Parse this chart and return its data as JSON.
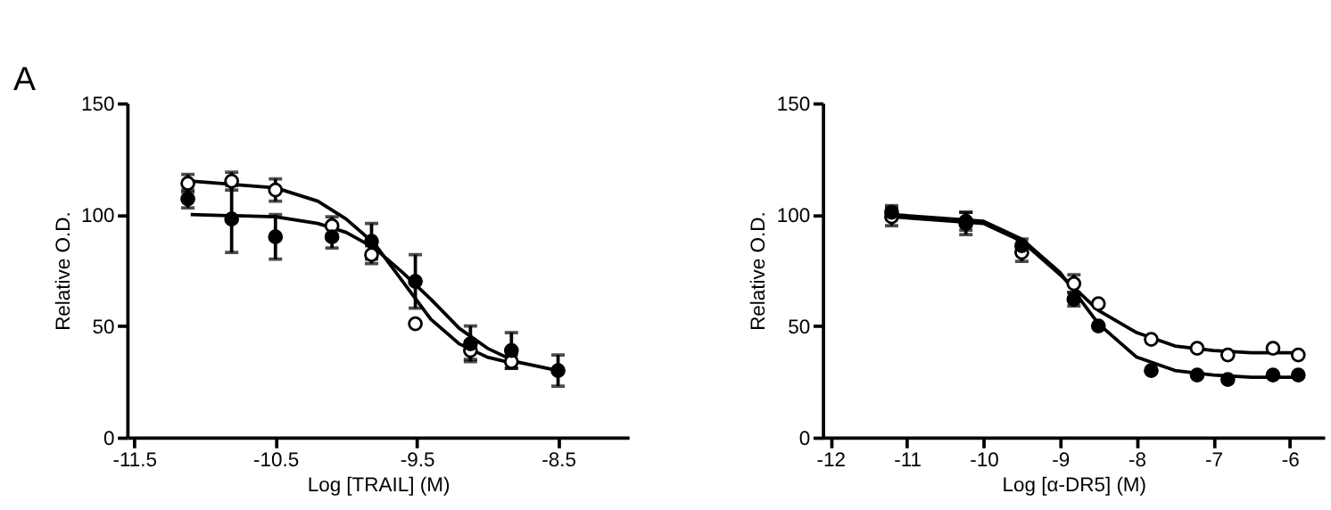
{
  "chart_data": [
    {
      "type": "scatter",
      "annotations": [
        "A"
      ],
      "xlabel": "Log [TRAIL] (M)",
      "ylabel": "Relative O.D.",
      "xlim": [
        -11.55,
        -8.0
      ],
      "ylim": [
        0,
        150
      ],
      "xticks": [
        -11.5,
        -10.5,
        -9.5,
        -8.5
      ],
      "yticks": [
        0,
        50,
        100,
        150
      ],
      "grid": false,
      "series": [
        {
          "type": "line",
          "marker": "none",
          "color": "#000000",
          "x": [
            -11.1,
            -10.5,
            -10.2,
            -10.0,
            -9.8,
            -9.6,
            -9.4,
            -9.2,
            -9.0,
            -8.8
          ],
          "values": [
            115,
            112,
            106,
            98,
            87,
            70,
            53,
            42,
            36,
            33
          ]
        },
        {
          "type": "line",
          "marker": "none",
          "color": "#000000",
          "x": [
            -11.1,
            -10.5,
            -10.2,
            -10.0,
            -9.8,
            -9.6,
            -9.4,
            -9.2,
            -9.0,
            -8.8,
            -8.5
          ],
          "values": [
            100,
            99,
            96,
            92,
            85,
            74,
            62,
            49,
            40,
            34,
            30
          ]
        },
        {
          "marker": "circle",
          "color": "#ffffff",
          "x": [
            -11.12,
            -10.81,
            -10.5,
            -10.1,
            -9.82,
            -9.51,
            -9.12,
            -8.83
          ],
          "values": [
            114,
            115,
            111,
            95,
            82,
            51,
            39,
            34
          ],
          "errors": [
            4,
            4,
            5,
            4,
            4,
            null,
            4,
            3
          ]
        },
        {
          "marker": "circle",
          "color": "#000000",
          "x": [
            -11.12,
            -10.81,
            -10.5,
            -10.1,
            -9.82,
            -9.51,
            -9.12,
            -8.83,
            -8.5
          ],
          "values": [
            107,
            98,
            90,
            90,
            88,
            70,
            42,
            39,
            30
          ],
          "errors": [
            4,
            15,
            10,
            5,
            8,
            12,
            8,
            8,
            7
          ]
        }
      ]
    },
    {
      "type": "scatter",
      "xlabel": "Log [α-DR5] (M)",
      "ylabel": "Relative O.D.",
      "xlim": [
        -12.1,
        -5.55
      ],
      "ylim": [
        0,
        150
      ],
      "xticks": [
        -12,
        -11,
        -10,
        -9,
        -8,
        -7,
        -6
      ],
      "yticks": [
        0,
        50,
        100,
        150
      ],
      "grid": false,
      "series": [
        {
          "type": "line",
          "marker": "none",
          "color": "#000000",
          "x": [
            -11.2,
            -10.0,
            -9.5,
            -9.0,
            -8.5,
            -8.0,
            -7.5,
            -7.0,
            -6.5,
            -5.9
          ],
          "values": [
            99,
            96,
            88,
            73,
            57,
            47,
            41,
            39,
            38,
            38
          ]
        },
        {
          "type": "line",
          "marker": "none",
          "color": "#000000",
          "x": [
            -11.2,
            -10.0,
            -9.5,
            -9.0,
            -8.5,
            -8.0,
            -7.5,
            -7.0,
            -6.5,
            -5.9
          ],
          "values": [
            100,
            97,
            89,
            74,
            51,
            36,
            30,
            28,
            27,
            27
          ]
        },
        {
          "marker": "circle",
          "color": "#ffffff",
          "x": [
            -11.2,
            -10.23,
            -9.5,
            -8.82,
            -8.5,
            -7.81,
            -7.21,
            -6.81,
            -6.22,
            -5.89
          ],
          "values": [
            99,
            96,
            83,
            69,
            60,
            44,
            40,
            37,
            40,
            37
          ],
          "errors": [
            4,
            5,
            4,
            4,
            null,
            null,
            null,
            null,
            null,
            null
          ]
        },
        {
          "marker": "circle",
          "color": "#000000",
          "x": [
            -11.2,
            -10.23,
            -9.5,
            -8.82,
            -8.5,
            -7.81,
            -7.21,
            -6.81,
            -6.22,
            -5.89
          ],
          "values": [
            101,
            97,
            86,
            62,
            50,
            30,
            28,
            26,
            28,
            28
          ],
          "errors": [
            3,
            4,
            3,
            3,
            null,
            null,
            null,
            null,
            null,
            null
          ]
        }
      ]
    }
  ]
}
